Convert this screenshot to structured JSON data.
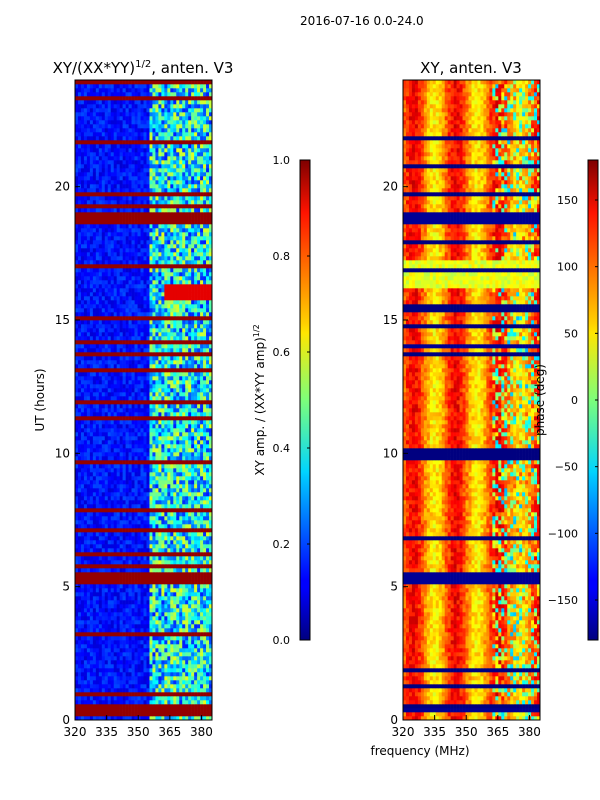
{
  "page": {
    "suptitle": "2016-07-16 0.0-24.0"
  },
  "chart_data": [
    {
      "type": "heatmap",
      "title": "XY/(XX*YY)",
      "title_sup": "1/2",
      "title_suffix": ", anten. V3",
      "xlabel": "",
      "ylabel": "UT (hours)",
      "xlim": [
        320,
        385
      ],
      "ylim": [
        0,
        24
      ],
      "xticks": [
        320,
        335,
        350,
        365,
        380
      ],
      "yticks": [
        0,
        5,
        10,
        15,
        20
      ],
      "colorbar": {
        "label": "XY amp. / (XX*YY amp)",
        "label_sup": "1/2",
        "range": [
          0.0,
          1.0
        ],
        "ticks": [
          "0.0",
          "0.2",
          "0.4",
          "0.6",
          "0.8",
          "1.0"
        ],
        "colormap": "jet"
      },
      "saturated_bands_hours": [
        [
          0.25,
          0.5
        ],
        [
          5.1,
          5.5
        ],
        [
          18.6,
          19.1
        ],
        [
          19.6,
          19.8
        ],
        [
          15.0,
          15.2
        ]
      ],
      "bright_band_hours": [
        [
          15.8,
          16.3
        ]
      ],
      "rfi_band_freq_mhz": [
        356,
        384
      ]
    },
    {
      "type": "heatmap",
      "title": "XY, anten. V3",
      "xlabel": "frequency (MHz)",
      "ylabel": "",
      "xlim": [
        320,
        385
      ],
      "ylim": [
        0,
        24
      ],
      "xticks": [
        320,
        335,
        350,
        365,
        380
      ],
      "yticks": [
        0,
        5,
        10,
        15,
        20
      ],
      "colorbar": {
        "label": "phase (deg)",
        "range": [
          -180,
          180
        ],
        "ticks": [
          "−150",
          "−100",
          "−50",
          "0",
          "50",
          "100",
          "150"
        ],
        "tick_values": [
          -150,
          -100,
          -50,
          0,
          50,
          100,
          150
        ],
        "colormap": "jet"
      },
      "saturated_bands_hours": [
        [
          0.25,
          0.5
        ],
        [
          5.1,
          5.5
        ],
        [
          18.6,
          19.1
        ],
        [
          14.0,
          14.1
        ]
      ],
      "bright_band_hours": [
        [
          16.2,
          17.2
        ]
      ]
    }
  ]
}
